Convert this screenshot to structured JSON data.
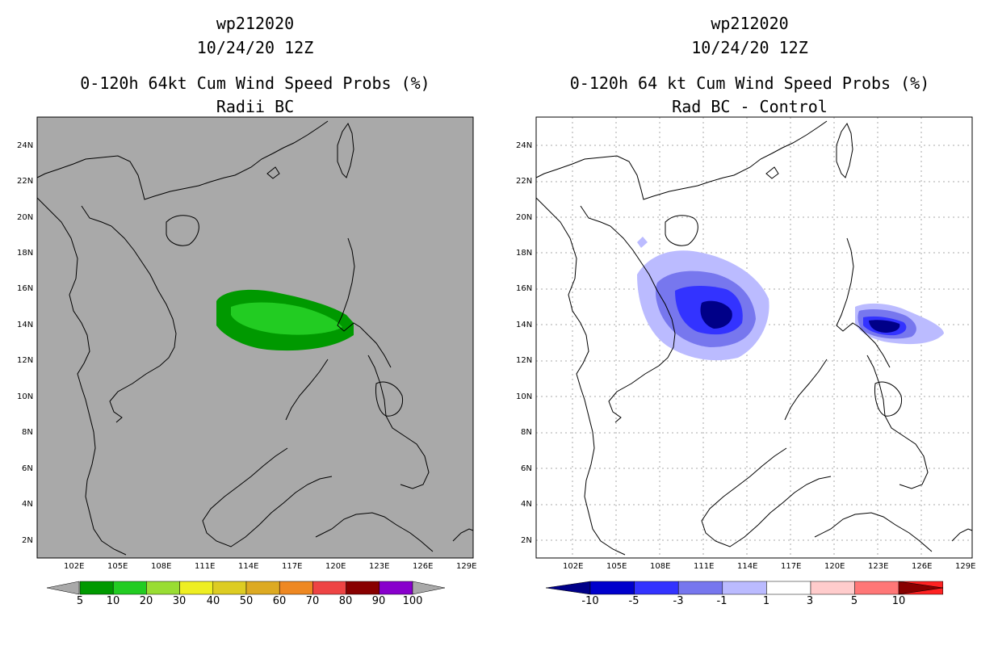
{
  "left_panel": {
    "title_line1": "wp212020",
    "title_line2": "10/24/20 12Z",
    "title_line3": "0-120h 64kt Cum Wind Speed Probs (%)",
    "title_line4": "Radii BC",
    "background_color": "#a9a9a9",
    "lat_labels": [
      "24N",
      "22N",
      "20N",
      "18N",
      "16N",
      "14N",
      "12N",
      "10N",
      "8N",
      "6N",
      "4N",
      "2N"
    ],
    "lon_labels": [
      "102E",
      "105E",
      "108E",
      "111E",
      "114E",
      "117E",
      "120E",
      "123E",
      "126E",
      "129E"
    ],
    "colorbar": {
      "colors": [
        "#009900",
        "#22cc22",
        "#99dd33",
        "#eeee22",
        "#ddcc22",
        "#ddaa22",
        "#ee8822",
        "#ee4444",
        "#880000",
        "#8800cc"
      ],
      "labels": [
        "5",
        "10",
        "20",
        "30",
        "40",
        "50",
        "60",
        "70",
        "80",
        "90",
        "100"
      ]
    }
  },
  "right_panel": {
    "title_line1": "wp212020",
    "title_line2": "10/24/20 12Z",
    "title_line3": "0-120h 64 kt Cum Wind Speed Probs (%)",
    "title_line4": "Rad BC - Control",
    "background_color": "#ffffff",
    "lat_labels": [
      "24N",
      "22N",
      "20N",
      "18N",
      "16N",
      "14N",
      "12N",
      "10N",
      "8N",
      "6N",
      "4N",
      "2N"
    ],
    "lon_labels": [
      "102E",
      "105E",
      "108E",
      "111E",
      "114E",
      "117E",
      "120E",
      "123E",
      "126E",
      "129E"
    ],
    "colorbar": {
      "colors": [
        "#0000cc",
        "#3333ff",
        "#7777ee",
        "#bbbbff",
        "#ffffff",
        "#ffcccc",
        "#ff7777",
        "#ff2222"
      ],
      "low_color": "#000088",
      "high_color": "#880000",
      "labels": [
        "-10",
        "-5",
        "-3",
        "-1",
        "1",
        "3",
        "5",
        "10"
      ]
    }
  }
}
